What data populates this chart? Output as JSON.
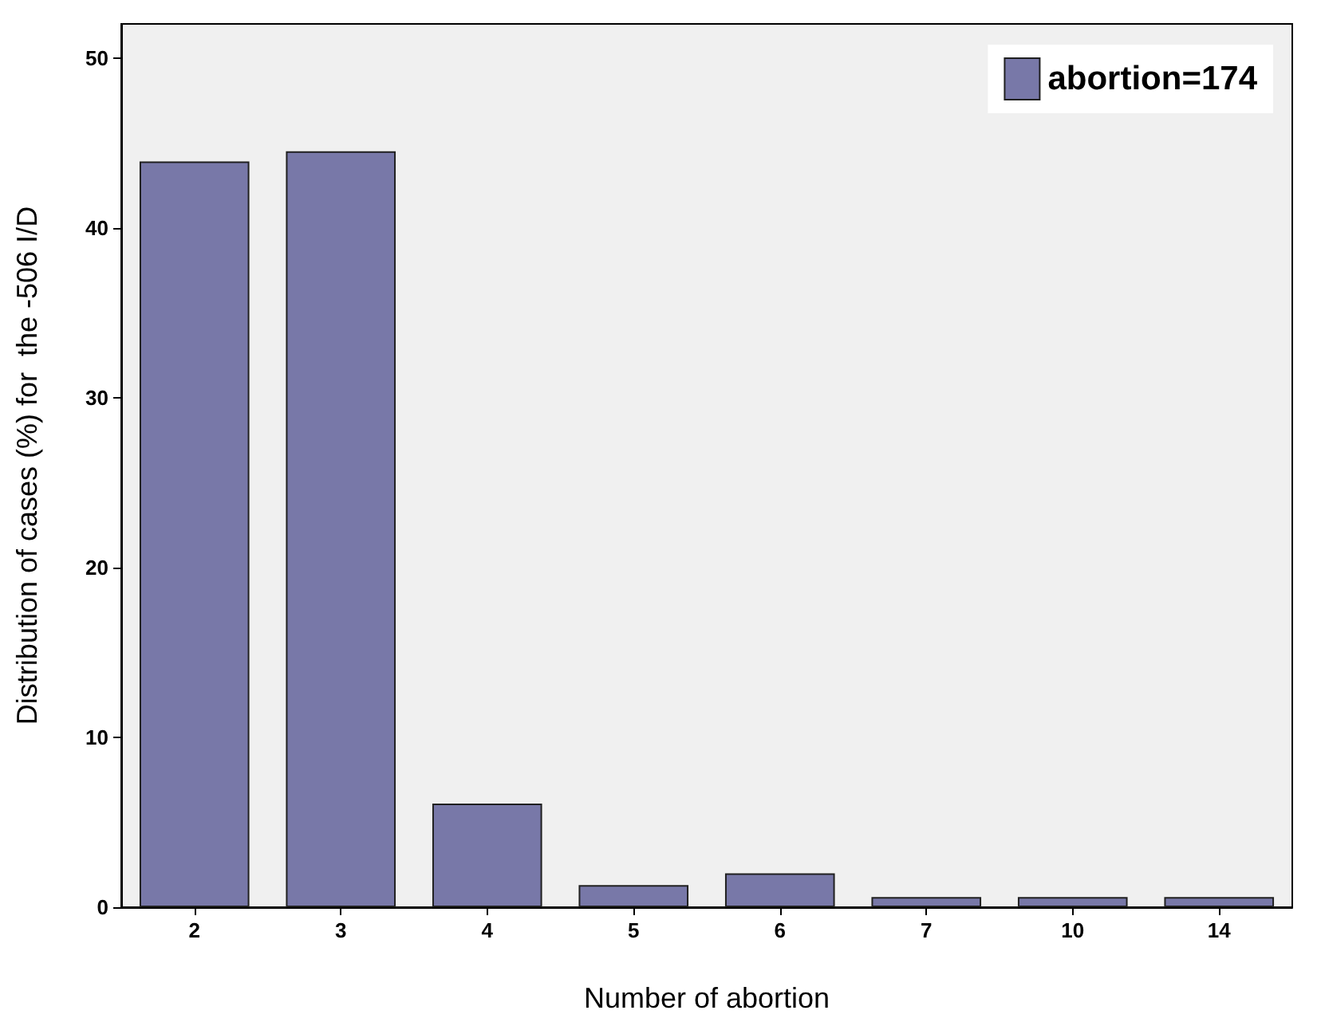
{
  "chart_data": {
    "type": "bar",
    "xlabel": "Number of abortion",
    "ylabel": "Distribution of cases (%) for  the -506 I/D",
    "categories": [
      "2",
      "3",
      "4",
      "5",
      "6",
      "7",
      "10",
      "14"
    ],
    "series": [
      {
        "name": "abortion=174",
        "color": "#7878a8",
        "values": [
          43.9,
          44.5,
          6.1,
          1.3,
          2.0,
          0.6,
          0.6,
          0.6
        ]
      }
    ],
    "ylim": [
      0,
      52
    ],
    "yticks": [
      0,
      10,
      20,
      30,
      40,
      50
    ],
    "grid": false,
    "legend": "top right"
  }
}
